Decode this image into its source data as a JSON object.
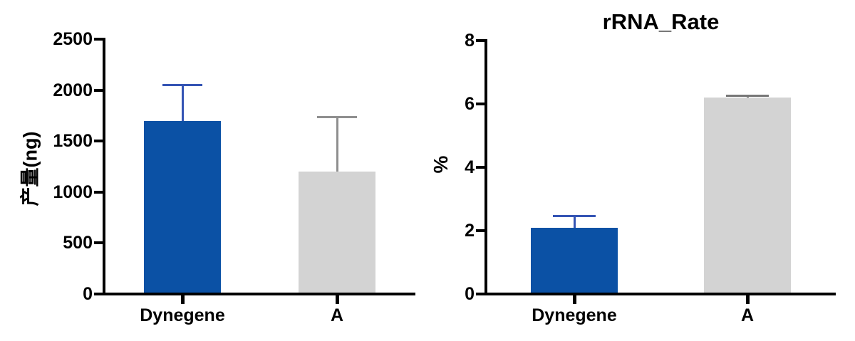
{
  "figure": {
    "background": "#ffffff",
    "axis_color": "#000000",
    "text_color": "#000000"
  },
  "chart_data": [
    {
      "type": "bar",
      "title": "",
      "ylabel": "产量(ng)",
      "xlabel": "",
      "categories": [
        "Dynegene",
        "A"
      ],
      "values": [
        1700,
        1200
      ],
      "error_plus": [
        350,
        540
      ],
      "ylim": [
        0,
        2500
      ],
      "yticks": [
        0,
        500,
        1000,
        1500,
        2000,
        2500
      ],
      "grid": false,
      "legend": "none",
      "bar_colors": [
        "#0B51A5",
        "#D3D3D3"
      ],
      "error_colors": [
        "#3454B4",
        "#8F8F8F"
      ]
    },
    {
      "type": "bar",
      "title": "rRNA_Rate",
      "ylabel": "%",
      "xlabel": "",
      "categories": [
        "Dynegene",
        "A"
      ],
      "values": [
        2.1,
        6.2
      ],
      "error_plus": [
        0.37,
        0.07
      ],
      "ylim": [
        0,
        8
      ],
      "yticks": [
        0,
        2,
        4,
        6,
        8
      ],
      "grid": false,
      "legend": "none",
      "bar_colors": [
        "#0B51A5",
        "#D3D3D3"
      ],
      "error_colors": [
        "#3454B4",
        "#777777"
      ]
    }
  ]
}
